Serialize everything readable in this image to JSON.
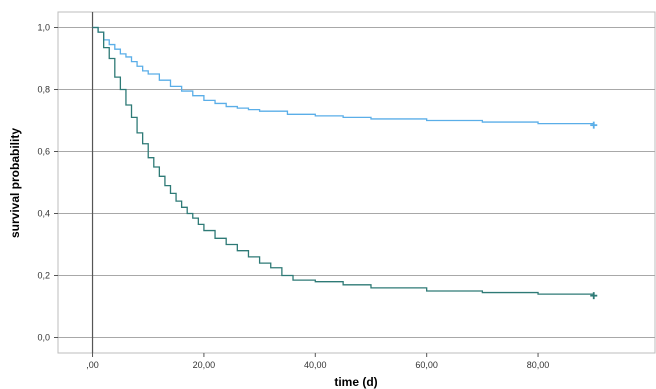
{
  "chart_data": {
    "type": "line",
    "title": "",
    "xlabel": "time (d)",
    "ylabel": "survival probability",
    "xlim": [
      -6.2,
      101
    ],
    "ylim": [
      -0.05,
      1.05
    ],
    "x_ticks": [
      0,
      20,
      40,
      60,
      80
    ],
    "x_tick_labels": [
      ",00",
      "20,00",
      "40,00",
      "60,00",
      "80,00"
    ],
    "y_ticks": [
      0,
      0.2,
      0.4,
      0.6,
      0.8,
      1.0
    ],
    "y_tick_labels": [
      "0,0",
      "0,2",
      "0,4",
      "0,6",
      "0,8",
      "1,0"
    ],
    "grid": "horizontal",
    "legend": "none",
    "series": [
      {
        "color": "#5aaee8",
        "censor_marker": "+",
        "x": [
          0,
          1,
          2,
          3,
          4,
          5,
          6,
          7,
          8,
          9,
          10,
          12,
          14,
          16,
          18,
          20,
          22,
          24,
          26,
          28,
          30,
          35,
          40,
          45,
          50,
          60,
          70,
          80,
          90
        ],
        "y": [
          1.0,
          0.985,
          0.96,
          0.945,
          0.93,
          0.915,
          0.905,
          0.89,
          0.875,
          0.86,
          0.85,
          0.83,
          0.81,
          0.795,
          0.78,
          0.765,
          0.755,
          0.745,
          0.74,
          0.735,
          0.73,
          0.72,
          0.715,
          0.71,
          0.705,
          0.7,
          0.695,
          0.69,
          0.685
        ]
      },
      {
        "color": "#2e7a76",
        "censor_marker": "+",
        "x": [
          0,
          1,
          2,
          3,
          4,
          5,
          6,
          7,
          8,
          9,
          10,
          11,
          12,
          13,
          14,
          15,
          16,
          17,
          18,
          19,
          20,
          22,
          24,
          26,
          28,
          30,
          32,
          34,
          36,
          40,
          45,
          50,
          60,
          70,
          80,
          90
        ],
        "y": [
          1.0,
          0.985,
          0.935,
          0.9,
          0.84,
          0.8,
          0.75,
          0.71,
          0.66,
          0.625,
          0.58,
          0.55,
          0.52,
          0.49,
          0.465,
          0.44,
          0.42,
          0.4,
          0.385,
          0.365,
          0.345,
          0.32,
          0.3,
          0.28,
          0.26,
          0.24,
          0.225,
          0.2,
          0.185,
          0.18,
          0.17,
          0.16,
          0.15,
          0.145,
          0.14,
          0.135
        ]
      }
    ]
  }
}
